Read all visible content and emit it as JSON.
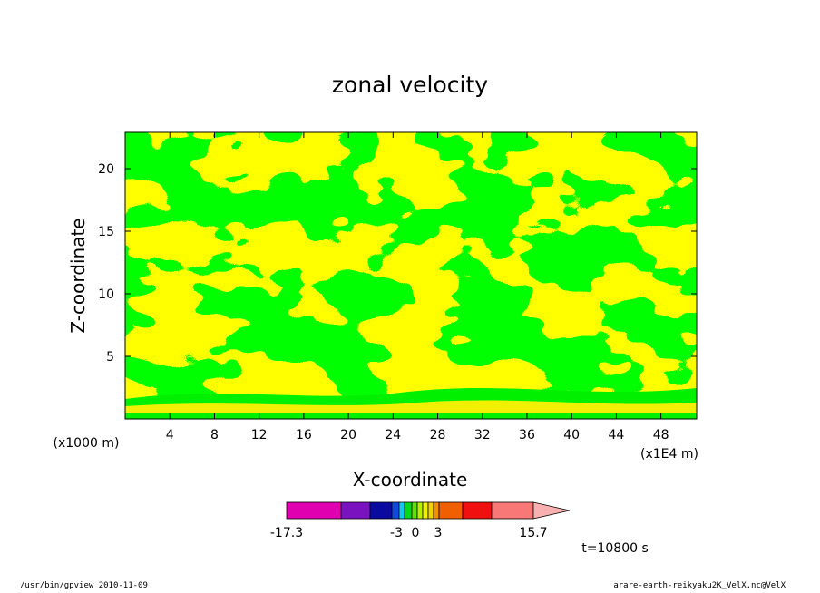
{
  "chart_data": {
    "type": "heatmap",
    "title": "zonal velocity",
    "xlabel": "X-coordinate",
    "ylabel": "Z-coordinate",
    "x_units": "(x1E4 m)",
    "y_units": "(x1000 m)",
    "xlim": [
      0,
      51.2
    ],
    "ylim": [
      0,
      22.9
    ],
    "x_ticks": [
      "4",
      "8",
      "12",
      "16",
      "20",
      "24",
      "28",
      "32",
      "36",
      "40",
      "44",
      "48"
    ],
    "y_ticks": [
      "5",
      "10",
      "15",
      "20"
    ],
    "colorbar": {
      "colors": [
        "#e000b0",
        "#7a12c0",
        "#0a0aa0",
        "#1048e0",
        "#10c8f0",
        "#00d820",
        "#5ee000",
        "#b8ee00",
        "#f0f000",
        "#f0d000",
        "#f09000",
        "#f06000",
        "#f01010",
        "#f87878",
        "#f8b0b0"
      ],
      "tick_labels": [
        "-17.3",
        "-3",
        "0",
        "3",
        "15.7"
      ]
    },
    "time_label": "t=10800 s",
    "dominant_colors": {
      "positive": "#f0f000",
      "negative": "#00f000"
    },
    "grid": false
  },
  "footer": {
    "left": "/usr/bin/gpview   2010-11-09",
    "right": "arare-earth-reikyaku2K_VelX.nc@VelX"
  }
}
